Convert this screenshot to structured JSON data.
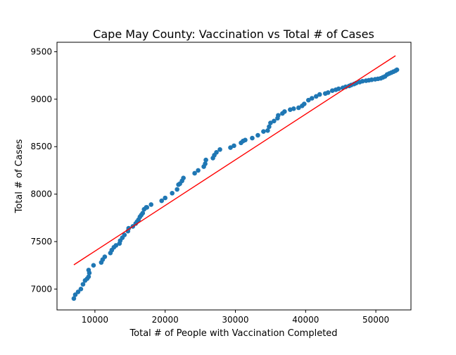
{
  "chart_data": {
    "type": "scatter",
    "title": "Cape May County: Vaccination vs Total # of Cases",
    "xlabel": "Total # of People with Vaccination Completed",
    "ylabel": "Total # of Cases",
    "xlim": [
      4600,
      55000
    ],
    "ylim": [
      6780,
      9600
    ],
    "x_ticks": [
      10000,
      20000,
      30000,
      40000,
      50000
    ],
    "x_tick_labels": [
      "10000",
      "20000",
      "30000",
      "40000",
      "50000"
    ],
    "y_ticks": [
      7000,
      7500,
      8000,
      8500,
      9000,
      9500
    ],
    "y_tick_labels": [
      "7000",
      "7500",
      "8000",
      "8500",
      "9000",
      "9500"
    ],
    "grid": false,
    "legend": "none",
    "colors": {
      "points": "#1f77b4",
      "fit_line": "#ff0000"
    },
    "series": [
      {
        "points": [
          [
            7000,
            6900
          ],
          [
            7200,
            6940
          ],
          [
            7600,
            6970
          ],
          [
            8000,
            7000
          ],
          [
            8300,
            7050
          ],
          [
            8600,
            7090
          ],
          [
            8900,
            7110
          ],
          [
            9100,
            7130
          ],
          [
            9200,
            7170
          ],
          [
            9100,
            7200
          ],
          [
            9800,
            7250
          ],
          [
            10900,
            7280
          ],
          [
            11100,
            7310
          ],
          [
            11400,
            7340
          ],
          [
            12200,
            7380
          ],
          [
            12400,
            7410
          ],
          [
            12700,
            7440
          ],
          [
            13000,
            7460
          ],
          [
            13500,
            7480
          ],
          [
            13600,
            7510
          ],
          [
            13900,
            7540
          ],
          [
            14200,
            7570
          ],
          [
            14700,
            7610
          ],
          [
            14800,
            7640
          ],
          [
            15400,
            7660
          ],
          [
            15800,
            7690
          ],
          [
            16000,
            7710
          ],
          [
            16200,
            7730
          ],
          [
            16400,
            7760
          ],
          [
            16600,
            7780
          ],
          [
            16800,
            7800
          ],
          [
            17000,
            7840
          ],
          [
            17300,
            7860
          ],
          [
            17400,
            7860
          ],
          [
            18000,
            7890
          ],
          [
            19500,
            7930
          ],
          [
            20000,
            7960
          ],
          [
            21000,
            8010
          ],
          [
            21700,
            8050
          ],
          [
            21900,
            8100
          ],
          [
            22100,
            8110
          ],
          [
            22400,
            8140
          ],
          [
            22600,
            8170
          ],
          [
            24200,
            8220
          ],
          [
            24700,
            8250
          ],
          [
            25500,
            8290
          ],
          [
            25700,
            8320
          ],
          [
            25800,
            8360
          ],
          [
            26800,
            8380
          ],
          [
            27000,
            8410
          ],
          [
            27300,
            8440
          ],
          [
            27800,
            8470
          ],
          [
            29300,
            8490
          ],
          [
            29800,
            8510
          ],
          [
            30800,
            8540
          ],
          [
            31100,
            8560
          ],
          [
            31400,
            8570
          ],
          [
            32400,
            8590
          ],
          [
            33200,
            8620
          ],
          [
            34000,
            8660
          ],
          [
            34600,
            8670
          ],
          [
            34800,
            8710
          ],
          [
            35000,
            8750
          ],
          [
            35500,
            8770
          ],
          [
            36000,
            8800
          ],
          [
            36100,
            8830
          ],
          [
            36700,
            8850
          ],
          [
            37000,
            8870
          ],
          [
            37800,
            8890
          ],
          [
            38300,
            8900
          ],
          [
            39000,
            8910
          ],
          [
            39500,
            8930
          ],
          [
            39800,
            8950
          ],
          [
            40400,
            8990
          ],
          [
            40900,
            9010
          ],
          [
            41500,
            9030
          ],
          [
            42000,
            9050
          ],
          [
            42800,
            9060
          ],
          [
            43200,
            9070
          ],
          [
            43800,
            9090
          ],
          [
            44300,
            9100
          ],
          [
            44700,
            9110
          ],
          [
            45300,
            9120
          ],
          [
            45700,
            9130
          ],
          [
            46200,
            9140
          ],
          [
            46500,
            9150
          ],
          [
            46900,
            9160
          ],
          [
            47200,
            9170
          ],
          [
            47700,
            9180
          ],
          [
            48100,
            9190
          ],
          [
            48600,
            9195
          ],
          [
            49000,
            9200
          ],
          [
            49400,
            9205
          ],
          [
            49900,
            9210
          ],
          [
            50300,
            9215
          ],
          [
            50700,
            9220
          ],
          [
            51000,
            9230
          ],
          [
            51300,
            9240
          ],
          [
            51600,
            9260
          ],
          [
            51900,
            9270
          ],
          [
            52200,
            9280
          ],
          [
            52500,
            9290
          ],
          [
            52800,
            9300
          ],
          [
            53000,
            9310
          ]
        ]
      },
      {
        "line": [
          [
            7000,
            7255
          ],
          [
            52800,
            9458
          ]
        ]
      }
    ]
  }
}
